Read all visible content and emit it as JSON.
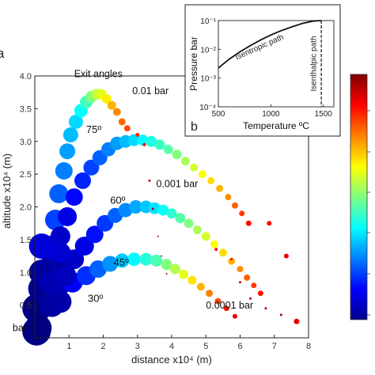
{
  "chart_data": [
    {
      "type": "scatter",
      "panel_label": "a",
      "xlabel": "distance x10⁴ (m)",
      "ylabel": "altitude x10⁴ (m)",
      "xlim": [
        0,
        8
      ],
      "ylim": [
        0,
        4
      ],
      "x_ticks": [
        1,
        2,
        3,
        4,
        5,
        6,
        7,
        8
      ],
      "y_ticks": [
        0.5,
        1.0,
        1.5,
        2.0,
        2.5,
        3.0,
        3.5,
        4.0
      ],
      "x_tick_labels": [
        "1",
        "2",
        "3",
        "4",
        "5",
        "6",
        "7",
        "8"
      ],
      "y_tick_labels": [
        "0.5",
        "1.0",
        "1.5",
        "2.0",
        "2.5",
        "3.0",
        "3.5",
        "4.0"
      ],
      "annotations": [
        {
          "text": "Exit angles",
          "x": 1.15,
          "y": 3.98
        },
        {
          "text": "0.01 bar",
          "x": 2.85,
          "y": 3.72
        },
        {
          "text": "0.001 bar",
          "x": 3.55,
          "y": 2.3
        },
        {
          "text": "0.0001 bar",
          "x": 5.0,
          "y": 0.45
        },
        {
          "text": "bar",
          "x": -0.65,
          "y": 0.1
        }
      ],
      "angle_labels": [
        {
          "text": "75º",
          "x": 1.5,
          "y": 3.13
        },
        {
          "text": "60º",
          "x": 2.2,
          "y": 2.05
        },
        {
          "text": "45º",
          "x": 2.3,
          "y": 1.1
        },
        {
          "text": "30º",
          "x": 1.55,
          "y": 0.55
        }
      ],
      "series": [
        {
          "points": [
            [
              0.1,
              0.15
            ],
            [
              0.15,
              0.45
            ],
            [
              0.25,
              0.75
            ],
            [
              0.35,
              1.05
            ],
            [
              0.5,
              1.4
            ],
            [
              0.6,
              1.8
            ],
            [
              0.7,
              2.2
            ],
            [
              0.85,
              2.55
            ],
            [
              0.95,
              2.85
            ],
            [
              1.05,
              3.1
            ],
            [
              1.2,
              3.3
            ],
            [
              1.35,
              3.47
            ],
            [
              1.5,
              3.6
            ],
            [
              1.65,
              3.68
            ],
            [
              1.8,
              3.72
            ],
            [
              1.95,
              3.72
            ],
            [
              2.1,
              3.65
            ],
            [
              2.25,
              3.55
            ],
            [
              2.4,
              3.45
            ],
            [
              2.55,
              3.3
            ],
            [
              2.7,
              3.2
            ],
            [
              2.9,
              3.05
            ]
          ],
          "sizes": [
            34,
            30,
            29,
            28,
            27,
            26,
            24,
            22,
            20,
            19,
            18,
            17,
            16,
            15,
            14,
            13,
            12,
            11,
            10,
            9,
            8,
            7
          ],
          "colors": [
            0.0,
            0.06,
            0.1,
            0.13,
            0.16,
            0.19,
            0.22,
            0.25,
            0.28,
            0.31,
            0.34,
            0.38,
            0.44,
            0.5,
            0.56,
            0.6,
            0.64,
            0.7,
            0.74,
            0.77,
            0.8,
            0.82
          ]
        },
        {
          "points": [
            [
              0.55,
              1.25
            ],
            [
              0.75,
              1.55
            ],
            [
              0.95,
              1.85
            ],
            [
              1.15,
              2.15
            ],
            [
              1.4,
              2.4
            ],
            [
              1.65,
              2.6
            ],
            [
              1.9,
              2.75
            ],
            [
              2.15,
              2.88
            ],
            [
              2.4,
              2.97
            ],
            [
              2.65,
              3.0
            ],
            [
              2.9,
              3.02
            ],
            [
              3.15,
              3.02
            ],
            [
              3.4,
              3.0
            ],
            [
              3.65,
              2.95
            ],
            [
              3.9,
              2.88
            ],
            [
              4.15,
              2.8
            ],
            [
              4.4,
              2.7
            ],
            [
              4.65,
              2.6
            ],
            [
              4.9,
              2.5
            ],
            [
              5.15,
              2.4
            ],
            [
              5.4,
              2.28
            ],
            [
              5.65,
              2.15
            ],
            [
              5.85,
              2.02
            ],
            [
              6.05,
              1.9
            ],
            [
              6.25,
              1.75
            ]
          ],
          "sizes": [
            26,
            25,
            24,
            22,
            21,
            20,
            19,
            18,
            17,
            16,
            15,
            14,
            14,
            13,
            12,
            12,
            11,
            10,
            10,
            9,
            9,
            8,
            8,
            7,
            7
          ],
          "colors": [
            0.04,
            0.07,
            0.1,
            0.13,
            0.16,
            0.19,
            0.22,
            0.25,
            0.28,
            0.31,
            0.34,
            0.37,
            0.4,
            0.43,
            0.46,
            0.5,
            0.54,
            0.58,
            0.62,
            0.66,
            0.7,
            0.74,
            0.78,
            0.82,
            0.86
          ]
        },
        {
          "points": [
            [
              0.85,
              1.0
            ],
            [
              1.15,
              1.2
            ],
            [
              1.45,
              1.4
            ],
            [
              1.75,
              1.58
            ],
            [
              2.05,
              1.75
            ],
            [
              2.35,
              1.87
            ],
            [
              2.65,
              1.95
            ],
            [
              2.95,
              2.0
            ],
            [
              3.25,
              2.0
            ],
            [
              3.5,
              1.98
            ],
            [
              3.75,
              1.95
            ],
            [
              4.0,
              1.9
            ],
            [
              4.25,
              1.83
            ],
            [
              4.5,
              1.75
            ],
            [
              4.75,
              1.65
            ],
            [
              5.0,
              1.55
            ],
            [
              5.25,
              1.43
            ],
            [
              5.5,
              1.3
            ],
            [
              5.75,
              1.17
            ],
            [
              6.0,
              1.05
            ],
            [
              6.2,
              0.92
            ],
            [
              6.4,
              0.8
            ],
            [
              6.6,
              0.68
            ]
          ],
          "sizes": [
            26,
            25,
            24,
            22,
            21,
            19,
            18,
            17,
            16,
            15,
            14,
            13,
            13,
            12,
            11,
            11,
            10,
            10,
            9,
            8,
            8,
            7,
            7
          ],
          "colors": [
            0.03,
            0.07,
            0.1,
            0.14,
            0.18,
            0.22,
            0.26,
            0.29,
            0.32,
            0.35,
            0.38,
            0.42,
            0.46,
            0.5,
            0.54,
            0.58,
            0.62,
            0.66,
            0.7,
            0.74,
            0.78,
            0.82,
            0.86
          ]
        },
        {
          "points": [
            [
              0.7,
              0.8
            ],
            [
              1.1,
              0.85
            ],
            [
              1.5,
              0.95
            ],
            [
              1.85,
              1.05
            ],
            [
              2.2,
              1.13
            ],
            [
              2.55,
              1.18
            ],
            [
              2.9,
              1.2
            ],
            [
              3.25,
              1.2
            ],
            [
              3.55,
              1.18
            ],
            [
              3.85,
              1.12
            ],
            [
              4.1,
              1.05
            ],
            [
              4.35,
              0.97
            ],
            [
              4.6,
              0.88
            ],
            [
              4.85,
              0.78
            ],
            [
              5.1,
              0.68
            ],
            [
              5.35,
              0.56
            ],
            [
              5.6,
              0.45
            ],
            [
              5.85,
              0.33
            ]
          ],
          "sizes": [
            28,
            26,
            24,
            22,
            20,
            18,
            17,
            16,
            15,
            14,
            13,
            12,
            11,
            10,
            9,
            8,
            7,
            6
          ],
          "colors": [
            0.06,
            0.12,
            0.17,
            0.22,
            0.27,
            0.32,
            0.37,
            0.41,
            0.45,
            0.5,
            0.55,
            0.6,
            0.65,
            0.7,
            0.75,
            0.8,
            0.85,
            0.9
          ]
        },
        {
          "points": [
            [
              0.05,
              0.1
            ],
            [
              0.05,
              0.45
            ],
            [
              0.2,
              0.75
            ],
            [
              0.2,
              1.0
            ],
            [
              0.5,
              0.5
            ],
            [
              0.5,
              0.85
            ],
            [
              0.75,
              0.55
            ],
            [
              0.9,
              0.95
            ],
            [
              0.55,
              1.35
            ],
            [
              0.75,
              1.3
            ],
            [
              0.2,
              1.4
            ]
          ],
          "sizes": [
            36,
            36,
            34,
            32,
            30,
            30,
            28,
            27,
            28,
            26,
            32
          ],
          "colors": [
            0.0,
            0.0,
            0.02,
            0.03,
            0.03,
            0.05,
            0.04,
            0.06,
            0.07,
            0.08,
            0.09
          ]
        },
        {
          "points": [
            [
              3.0,
              3.1
            ],
            [
              3.2,
              2.95
            ],
            [
              3.35,
              2.4
            ],
            [
              3.45,
              1.97
            ],
            [
              3.6,
              1.55
            ],
            [
              3.7,
              1.25
            ],
            [
              3.85,
              0.98
            ],
            [
              5.3,
              1.35
            ],
            [
              5.75,
              1.2
            ],
            [
              6.0,
              0.85
            ],
            [
              6.3,
              0.6
            ],
            [
              6.75,
              0.45
            ],
            [
              7.2,
              0.35
            ],
            [
              6.85,
              1.75
            ],
            [
              7.35,
              1.25
            ],
            [
              7.65,
              0.25
            ]
          ],
          "sizes": [
            5,
            4,
            3,
            3,
            2,
            2,
            2,
            4,
            3,
            3,
            3,
            3,
            3,
            6,
            6,
            7
          ],
          "colors": [
            0.84,
            0.88,
            0.92,
            0.95,
            0.97,
            0.98,
            0.99,
            0.86,
            0.9,
            0.92,
            0.93,
            0.95,
            0.96,
            0.88,
            0.9,
            0.9
          ]
        }
      ]
    },
    {
      "type": "line",
      "panel_label": "b",
      "xlabel": "Temperature ºC",
      "ylabel": "Pressure bar",
      "xlim": [
        500,
        1600
      ],
      "ylim_log10": [
        -4,
        -1
      ],
      "x_ticks": [
        500,
        1000,
        1500
      ],
      "x_tick_labels": [
        "500",
        "1000",
        "1500"
      ],
      "y_ticks_log10": [
        -1,
        -2,
        -3,
        -4
      ],
      "y_tick_labels": [
        "10⁻¹",
        "10⁻²",
        "10⁻³",
        "10⁻⁴"
      ],
      "series": [
        {
          "name": "Isentropic path",
          "points": [
            [
              500,
              -2.65
            ],
            [
              600,
              -2.35
            ],
            [
              700,
              -2.1
            ],
            [
              800,
              -1.88
            ],
            [
              900,
              -1.68
            ],
            [
              1000,
              -1.5
            ],
            [
              1100,
              -1.35
            ],
            [
              1200,
              -1.22
            ],
            [
              1300,
              -1.1
            ],
            [
              1400,
              -1.02
            ],
            [
              1480,
              -1.0
            ]
          ]
        },
        {
          "name": "Isenthalpic path",
          "points": [
            [
              1480,
              -1.0
            ],
            [
              1480,
              -4.0
            ]
          ]
        }
      ],
      "labels": [
        {
          "text": "Isentropic path",
          "x": 900,
          "y": -2.0
        },
        {
          "text": "Isenthalpic path",
          "x": 1430,
          "y": -2.5
        }
      ]
    }
  ]
}
